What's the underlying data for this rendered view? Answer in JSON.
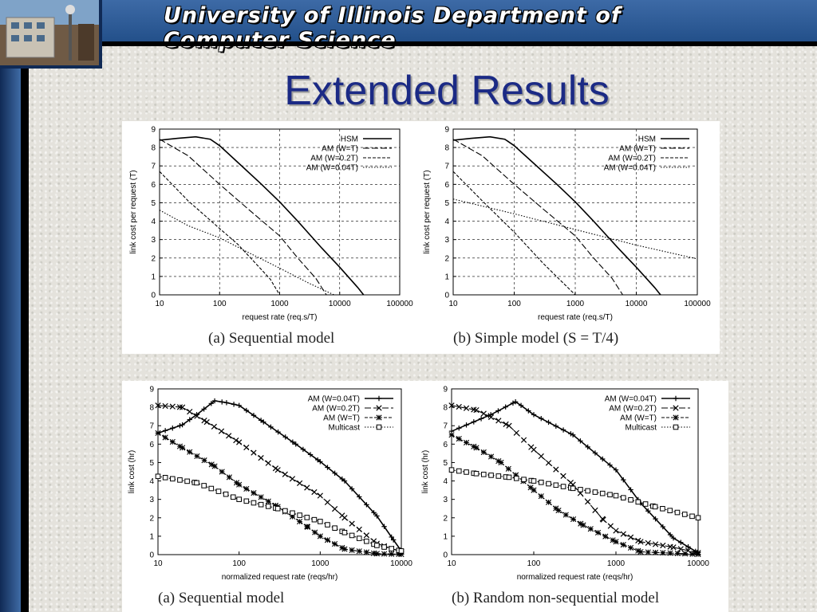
{
  "header": {
    "banner_title": "University of Illinois Department of Computer Science"
  },
  "slide": {
    "title": "Extended Results"
  },
  "chart_data": [
    {
      "type": "line",
      "caption": "(a) Sequential model",
      "xlabel": "request rate (req.s/T)",
      "ylabel": "link cost per request (T)",
      "xscale": "log",
      "xlim": [
        10,
        100000
      ],
      "ylim": [
        0,
        9
      ],
      "xticks": [
        "10",
        "100",
        "1000",
        "10000",
        "100000"
      ],
      "yticks": [
        "0",
        "1",
        "2",
        "3",
        "4",
        "5",
        "6",
        "7",
        "8",
        "9"
      ],
      "grid": true,
      "legend": "top-right",
      "marker_style": "none",
      "series": [
        {
          "name": "HSM",
          "points": [
            [
              10,
              8.4
            ],
            [
              20,
              8.5
            ],
            [
              40,
              8.58
            ],
            [
              70,
              8.45
            ],
            [
              100,
              8.1
            ],
            [
              200,
              7.2
            ],
            [
              500,
              6.0
            ],
            [
              1000,
              5.05
            ],
            [
              2000,
              4.0
            ],
            [
              5000,
              2.55
            ],
            [
              10000,
              1.5
            ],
            [
              20000,
              0.4
            ],
            [
              25000,
              0
            ]
          ]
        },
        {
          "name": "AM (W=T)",
          "points": [
            [
              10,
              8.45
            ],
            [
              30,
              7.55
            ],
            [
              100,
              6.0
            ],
            [
              300,
              4.65
            ],
            [
              1000,
              3.2
            ],
            [
              2000,
              2.0
            ],
            [
              4000,
              0.9
            ],
            [
              6000,
              0
            ]
          ]
        },
        {
          "name": "AM (W=0.2T)",
          "points": [
            [
              10,
              6.7
            ],
            [
              30,
              5.1
            ],
            [
              100,
              3.6
            ],
            [
              200,
              2.75
            ],
            [
              400,
              1.7
            ],
            [
              700,
              0.85
            ],
            [
              1000,
              0
            ]
          ]
        },
        {
          "name": "AM (W=0.04T)",
          "points": [
            [
              10,
              4.6
            ],
            [
              30,
              3.75
            ],
            [
              100,
              3.1
            ],
            [
              300,
              2.3
            ],
            [
              1000,
              1.45
            ],
            [
              3000,
              0.65
            ],
            [
              8000,
              0
            ]
          ]
        }
      ]
    },
    {
      "type": "line",
      "caption": "(b) Simple model (S = T/4)",
      "xlabel": "request rate (req.s/T)",
      "ylabel": "link cost per request (T)",
      "xscale": "log",
      "xlim": [
        10,
        100000
      ],
      "ylim": [
        0,
        9
      ],
      "xticks": [
        "10",
        "100",
        "1000",
        "10000",
        "100000"
      ],
      "yticks": [
        "0",
        "1",
        "2",
        "3",
        "4",
        "5",
        "6",
        "7",
        "8",
        "9"
      ],
      "grid": true,
      "legend": "top-right",
      "marker_style": "none",
      "series": [
        {
          "name": "HSM",
          "points": [
            [
              10,
              8.4
            ],
            [
              20,
              8.5
            ],
            [
              40,
              8.58
            ],
            [
              70,
              8.45
            ],
            [
              100,
              8.1
            ],
            [
              200,
              7.2
            ],
            [
              500,
              6.0
            ],
            [
              1000,
              5.05
            ],
            [
              2000,
              4.0
            ],
            [
              5000,
              2.55
            ],
            [
              10000,
              1.5
            ],
            [
              20000,
              0.4
            ],
            [
              25000,
              0
            ]
          ]
        },
        {
          "name": "AM (W=T)",
          "points": [
            [
              10,
              8.45
            ],
            [
              30,
              7.55
            ],
            [
              100,
              6.0
            ],
            [
              300,
              4.65
            ],
            [
              1000,
              3.2
            ],
            [
              2000,
              2.0
            ],
            [
              4000,
              0.9
            ],
            [
              6000,
              0
            ]
          ]
        },
        {
          "name": "AM (W=0.2T)",
          "points": [
            [
              10,
              6.7
            ],
            [
              30,
              5.1
            ],
            [
              100,
              3.4
            ],
            [
              300,
              1.7
            ],
            [
              1000,
              0
            ]
          ]
        },
        {
          "name": "AM (W=0.04T)",
          "points": [
            [
              10,
              5.2
            ],
            [
              100,
              4.4
            ],
            [
              1000,
              3.55
            ],
            [
              10000,
              2.7
            ],
            [
              100000,
              1.95
            ]
          ]
        }
      ]
    },
    {
      "type": "line",
      "caption": "(a) Sequential model",
      "xlabel": "normalized request rate (reqs/hr)",
      "ylabel": "link cost (hr)",
      "xscale": "log",
      "xlim": [
        10,
        10000
      ],
      "ylim": [
        0,
        9
      ],
      "xticks": [
        "10",
        "100",
        "1000",
        "10000"
      ],
      "yticks": [
        "0",
        "1",
        "2",
        "3",
        "4",
        "5",
        "6",
        "7",
        "8",
        "9"
      ],
      "grid": false,
      "legend": "top-right",
      "marker_style": "dense",
      "series": [
        {
          "name": "AM (W=0.04T)",
          "marker": "plus",
          "points": [
            [
              10,
              6.6
            ],
            [
              20,
              7.05
            ],
            [
              30,
              7.6
            ],
            [
              50,
              8.35
            ],
            [
              70,
              8.25
            ],
            [
              100,
              8.1
            ],
            [
              200,
              7.2
            ],
            [
              500,
              6.0
            ],
            [
              1000,
              5.05
            ],
            [
              2000,
              4.0
            ],
            [
              5000,
              2.1
            ],
            [
              8000,
              0.8
            ],
            [
              10000,
              0.2
            ]
          ]
        },
        {
          "name": "AM (W=0.2T)",
          "marker": "x",
          "points": [
            [
              10,
              8.1
            ],
            [
              20,
              8.0
            ],
            [
              40,
              7.2
            ],
            [
              100,
              6.1
            ],
            [
              300,
              4.6
            ],
            [
              1000,
              3.2
            ],
            [
              2000,
              2.0
            ],
            [
              5000,
              0.6
            ],
            [
              10000,
              0.15
            ]
          ]
        },
        {
          "name": "AM (W=T)",
          "marker": "star",
          "points": [
            [
              10,
              6.6
            ],
            [
              20,
              5.8
            ],
            [
              50,
              4.8
            ],
            [
              100,
              3.8
            ],
            [
              300,
              2.6
            ],
            [
              700,
              1.5
            ],
            [
              1000,
              1.0
            ],
            [
              2000,
              0.3
            ],
            [
              5000,
              0.05
            ],
            [
              10000,
              0.02
            ]
          ]
        },
        {
          "name": "Multicast",
          "marker": "square",
          "points": [
            [
              10,
              4.25
            ],
            [
              30,
              3.9
            ],
            [
              100,
              3.0
            ],
            [
              300,
              2.5
            ],
            [
              1000,
              1.8
            ],
            [
              2000,
              1.2
            ],
            [
              5000,
              0.5
            ],
            [
              10000,
              0.2
            ]
          ]
        }
      ]
    },
    {
      "type": "line",
      "caption": "(b) Random non-sequential model",
      "xlabel": "normalized request rate (reqs/hr)",
      "ylabel": "link cost (hr)",
      "xscale": "log",
      "xlim": [
        10,
        10000
      ],
      "ylim": [
        0,
        9
      ],
      "xticks": [
        "10",
        "100",
        "1000",
        "10000"
      ],
      "yticks": [
        "0",
        "1",
        "2",
        "3",
        "4",
        "5",
        "6",
        "7",
        "8",
        "9"
      ],
      "grid": false,
      "legend": "top-right",
      "marker_style": "dense",
      "series": [
        {
          "name": "AM (W=0.04T)",
          "marker": "plus",
          "points": [
            [
              10,
              6.7
            ],
            [
              30,
              7.6
            ],
            [
              60,
              8.3
            ],
            [
              70,
              8.1
            ],
            [
              100,
              7.6
            ],
            [
              300,
              6.5
            ],
            [
              1000,
              4.6
            ],
            [
              2000,
              2.8
            ],
            [
              5000,
              0.9
            ],
            [
              10000,
              0.1
            ]
          ]
        },
        {
          "name": "AM (W=0.2T)",
          "marker": "x",
          "points": [
            [
              10,
              8.1
            ],
            [
              20,
              7.85
            ],
            [
              50,
              7.0
            ],
            [
              100,
              5.7
            ],
            [
              300,
              3.8
            ],
            [
              700,
              1.9
            ],
            [
              1000,
              1.3
            ],
            [
              2000,
              0.7
            ],
            [
              5000,
              0.4
            ],
            [
              10000,
              0.1
            ]
          ]
        },
        {
          "name": "AM (W=T)",
          "marker": "star",
          "points": [
            [
              10,
              6.5
            ],
            [
              20,
              5.8
            ],
            [
              40,
              5.0
            ],
            [
              100,
              3.5
            ],
            [
              200,
              2.4
            ],
            [
              400,
              1.6
            ],
            [
              1000,
              0.7
            ],
            [
              2000,
              0.15
            ],
            [
              10000,
              0.02
            ]
          ]
        },
        {
          "name": "Multicast",
          "marker": "square",
          "points": [
            [
              10,
              4.6
            ],
            [
              20,
              4.4
            ],
            [
              50,
              4.2
            ],
            [
              100,
              4.0
            ],
            [
              300,
              3.6
            ],
            [
              1000,
              3.2
            ],
            [
              3000,
              2.6
            ],
            [
              10000,
              2.0
            ]
          ]
        }
      ]
    }
  ]
}
